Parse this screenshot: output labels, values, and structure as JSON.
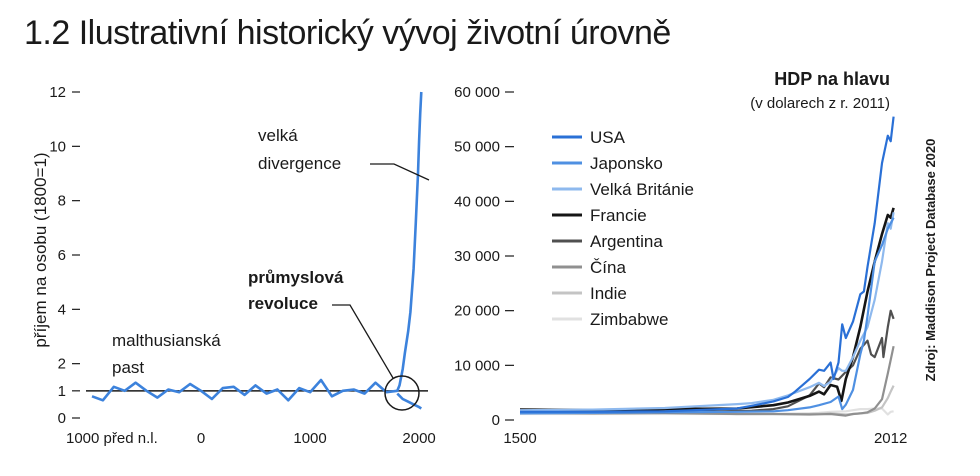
{
  "title": "1.2 Ilustrativní historický vývoj životní úrovně",
  "source": "Zdroj: Maddison Project Database 2020",
  "chart_data": [
    {
      "type": "line",
      "title": "",
      "ylabel": "příjem na osobu (1800=1)",
      "xlabel": "",
      "x_ticks": [
        {
          "value": -1000,
          "label": "1000 před n.l."
        },
        {
          "value": 0,
          "label": "0"
        },
        {
          "value": 1000,
          "label": "1000"
        },
        {
          "value": 2000,
          "label": "2000"
        }
      ],
      "y_ticks": [
        0,
        1,
        2,
        4,
        6,
        8,
        10,
        12
      ],
      "xlim": [
        -1000,
        2100
      ],
      "ylim": [
        0,
        12
      ],
      "reference_line": 1,
      "annotations": [
        {
          "text_lines": [
            "velká",
            "divergence"
          ]
        },
        {
          "text_lines": [
            "průmyslová",
            "revoluce"
          ],
          "bold": true
        },
        {
          "text_lines": [
            "malthusianská",
            "past"
          ]
        }
      ],
      "series": [
        {
          "color": "#3c82dc",
          "x": [
            -1000,
            -900,
            -800,
            -700,
            -600,
            -500,
            -400,
            -300,
            -200,
            -100,
            0,
            100,
            200,
            300,
            400,
            500,
            600,
            700,
            800,
            900,
            1000,
            1100,
            1200,
            1300,
            1400,
            1500,
            1600,
            1700,
            1800,
            1820,
            1850,
            1870,
            1900,
            1920,
            1950,
            1970,
            1990,
            2000,
            2010,
            2020
          ],
          "y": [
            0.8,
            0.65,
            1.15,
            1.0,
            1.3,
            1.0,
            0.75,
            1.05,
            0.95,
            1.25,
            1.0,
            0.7,
            1.1,
            1.15,
            0.85,
            1.2,
            0.9,
            1.05,
            0.65,
            1.1,
            0.95,
            1.4,
            0.8,
            1.0,
            1.05,
            0.9,
            1.3,
            0.95,
            1.0,
            1.2,
            1.8,
            2.4,
            3.2,
            3.9,
            5.5,
            7.2,
            9.0,
            10.2,
            11.2,
            12.0
          ]
        },
        {
          "color": "#3c82dc",
          "x": [
            1800,
            1850,
            1900,
            1950,
            2000,
            2020
          ],
          "y": [
            0.9,
            0.7,
            0.6,
            0.5,
            0.4,
            0.35
          ]
        }
      ]
    },
    {
      "type": "line",
      "title": "HDP na hlavu",
      "subtitle": "(v dolarech z r. 2011)",
      "x_ticks": [
        1500,
        2012
      ],
      "y_ticks": [
        0,
        10000,
        20000,
        30000,
        40000,
        50000,
        60000
      ],
      "y_tick_labels": [
        "0",
        "10 000",
        "20 000",
        "30 000",
        "40 000",
        "50 000",
        "60 000"
      ],
      "xlim": [
        1500,
        2018
      ],
      "ylim": [
        0,
        60000
      ],
      "legend": "top-left",
      "series": [
        {
          "name": "USA",
          "color": "#2a70d6",
          "x": [
            1500,
            1600,
            1700,
            1800,
            1820,
            1850,
            1870,
            1880,
            1900,
            1913,
            1920,
            1929,
            1933,
            1940,
            1945,
            1950,
            1960,
            1970,
            1975,
            1980,
            1990,
            2000,
            2008,
            2012,
            2016
          ],
          "y": [
            1500,
            1500,
            1600,
            2100,
            2600,
            3400,
            4200,
            5200,
            7500,
            9200,
            9000,
            10500,
            7500,
            10500,
            17500,
            15000,
            18000,
            23000,
            23500,
            28000,
            36000,
            47000,
            52000,
            51000,
            55500
          ]
        },
        {
          "name": "Japonsko",
          "color": "#4f90e2",
          "x": [
            1500,
            1600,
            1700,
            1800,
            1850,
            1870,
            1900,
            1913,
            1929,
            1940,
            1945,
            1950,
            1960,
            1970,
            1975,
            1980,
            1990,
            2000,
            2008,
            2012,
            2016
          ],
          "y": [
            1200,
            1300,
            1400,
            1500,
            1600,
            1800,
            2300,
            2700,
            3300,
            4300,
            2000,
            2800,
            5500,
            12000,
            14500,
            19000,
            29000,
            32000,
            35000,
            36000,
            37000
          ]
        },
        {
          "name": "Velká Británie",
          "color": "#8eb9ee",
          "x": [
            1500,
            1600,
            1700,
            1800,
            1820,
            1850,
            1870,
            1900,
            1913,
            1920,
            1929,
            1940,
            1945,
            1950,
            1960,
            1970,
            1980,
            1990,
            2000,
            2008,
            2012,
            2016
          ],
          "y": [
            1800,
            1900,
            2200,
            2900,
            3100,
            3700,
            4500,
            6000,
            6800,
            6200,
            7000,
            9500,
            9000,
            9000,
            11500,
            14500,
            17000,
            22000,
            29000,
            36000,
            35000,
            38000
          ]
        },
        {
          "name": "Francie",
          "color": "#151515",
          "x": [
            1500,
            1600,
            1700,
            1800,
            1850,
            1870,
            1900,
            1913,
            1920,
            1929,
            1938,
            1944,
            1950,
            1960,
            1970,
            1980,
            1990,
            2000,
            2008,
            2012,
            2016
          ],
          "y": [
            1900,
            1800,
            2000,
            2100,
            2700,
            3200,
            4400,
            5200,
            4700,
            6400,
            6100,
            3500,
            7500,
            11500,
            17000,
            23500,
            29000,
            34000,
            37500,
            37000,
            38800
          ]
        },
        {
          "name": "Argentina",
          "color": "#505050",
          "x": [
            1500,
            1700,
            1820,
            1850,
            1870,
            1900,
            1913,
            1920,
            1929,
            1940,
            1950,
            1960,
            1970,
            1980,
            1985,
            1990,
            2000,
            2002,
            2008,
            2012,
            2016
          ],
          "y": [
            1300,
            1400,
            1700,
            2000,
            2500,
            4500,
            6700,
            6000,
            7800,
            7400,
            8800,
            10000,
            13000,
            14500,
            12000,
            11500,
            15000,
            11500,
            17000,
            20000,
            18500
          ]
        },
        {
          "name": "Čína",
          "color": "#909090",
          "x": [
            1500,
            1600,
            1700,
            1800,
            1850,
            1900,
            1913,
            1929,
            1950,
            1960,
            1970,
            1980,
            1990,
            2000,
            2008,
            2012,
            2016
          ],
          "y": [
            1300,
            1200,
            1300,
            1100,
            1100,
            1000,
            1050,
            1100,
            800,
            1100,
            1200,
            1400,
            2100,
            3800,
            8500,
            11000,
            13500
          ]
        },
        {
          "name": "Indie",
          "color": "#c4c4c4",
          "x": [
            1500,
            1600,
            1700,
            1800,
            1850,
            1900,
            1913,
            1929,
            1950,
            1960,
            1970,
            1980,
            1990,
            2000,
            2008,
            2012,
            2016
          ],
          "y": [
            1300,
            1300,
            1200,
            1100,
            1100,
            1100,
            1150,
            1200,
            1000,
            1100,
            1200,
            1300,
            1700,
            2300,
            4000,
            5200,
            6300
          ]
        },
        {
          "name": "Zimbabwe",
          "color": "#e1e1e1",
          "x": [
            1500,
            1850,
            1900,
            1913,
            1929,
            1950,
            1960,
            1970,
            1980,
            1990,
            2000,
            2008,
            2012,
            2016
          ],
          "y": [
            1100,
            1100,
            1200,
            1300,
            1500,
            1600,
            1800,
            2000,
            2000,
            2100,
            2100,
            1000,
            1500,
            1600
          ]
        }
      ]
    }
  ]
}
